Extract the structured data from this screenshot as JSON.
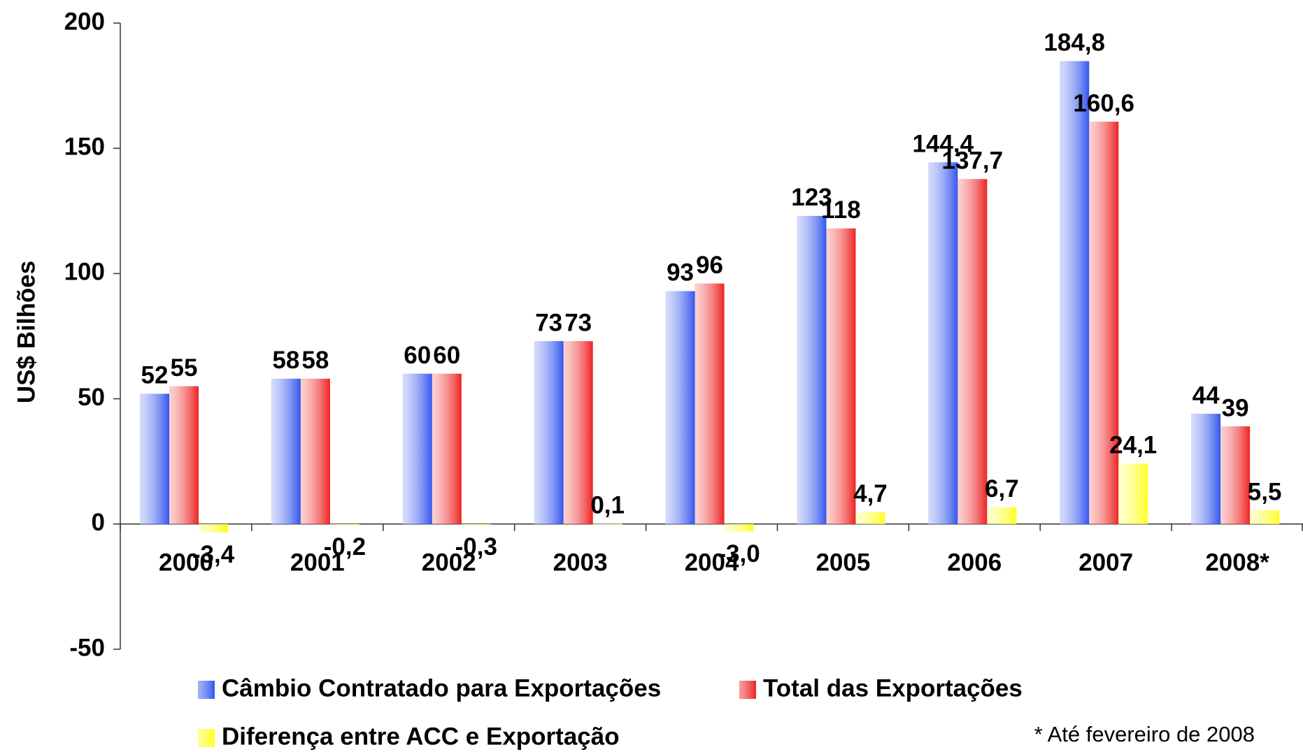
{
  "chart_data": {
    "type": "bar",
    "y_label": "US$ Bilhões",
    "annotation": "* Até fevereiro de 2008",
    "categories": [
      "2000",
      "2001",
      "2002",
      "2003",
      "2004",
      "2005",
      "2006",
      "2007",
      "2008*"
    ],
    "series": [
      {
        "name": "Câmbio Contratado para Exportações",
        "color": "#3355ee",
        "values": [
          52,
          58,
          60,
          73,
          93,
          123,
          144.4,
          184.8,
          44
        ],
        "value_labels": [
          "52",
          "58",
          "60",
          "73",
          "93",
          "123",
          "144,4",
          "184,8",
          "44"
        ]
      },
      {
        "name": "Total das Exportações",
        "color": "#ee2222",
        "values": [
          55,
          58,
          60,
          73,
          96,
          118,
          137.7,
          160.6,
          39
        ],
        "value_labels": [
          "55",
          "58",
          "60",
          "73",
          "96",
          "118",
          "137,7",
          "160,6",
          "39"
        ]
      },
      {
        "name": "Diferença entre ACC e Exportação",
        "color": "#ffff22",
        "values": [
          -3.4,
          -0.2,
          -0.3,
          0.1,
          -3.0,
          4.7,
          6.7,
          24.1,
          5.5
        ],
        "value_labels": [
          "-3,4",
          "-0,2",
          "-0,3",
          "0,1",
          "-3,0",
          "4,7",
          "6,7",
          "24,1",
          "5,5"
        ]
      }
    ],
    "ylim": [
      -50,
      200
    ],
    "yticks": [
      -50,
      0,
      50,
      100,
      150,
      200
    ],
    "grid": false,
    "legend": "bottom"
  }
}
